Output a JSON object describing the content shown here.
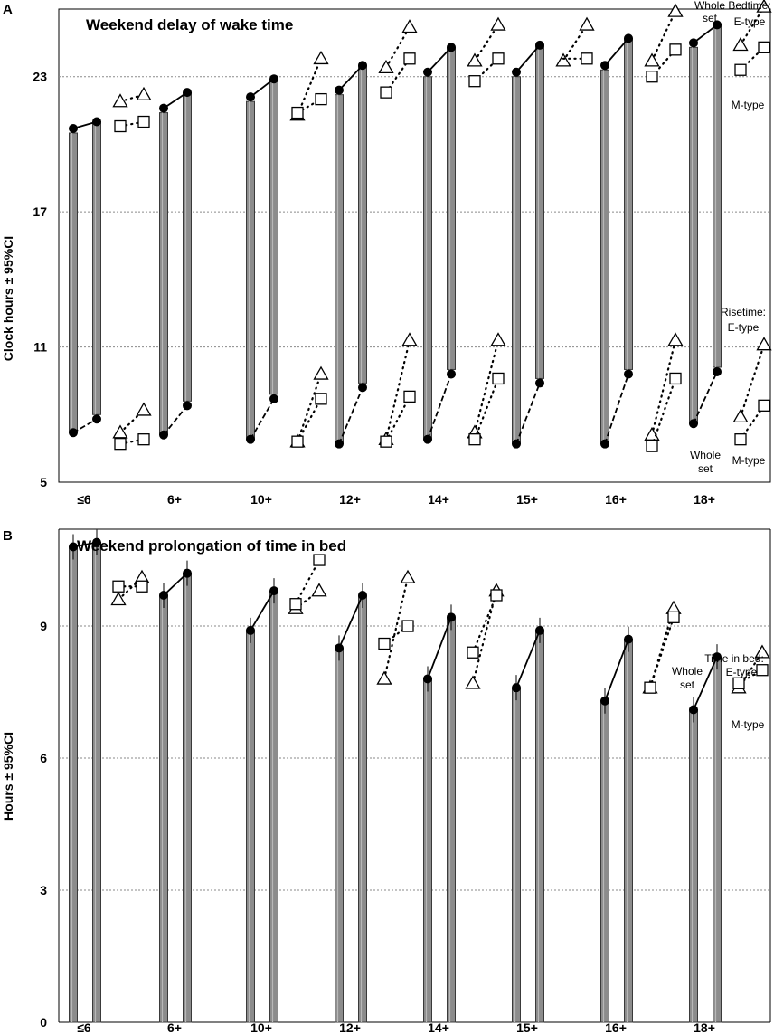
{
  "chart_data": [
    {
      "panel": "A",
      "type": "bar",
      "subtype": "floating-range-bars",
      "title": "Weekend delay of wake time",
      "ylabel": "Clock hours ± 95%CI",
      "ylim": [
        5,
        26
      ],
      "yticks": [
        5,
        11,
        17,
        23
      ],
      "categories": [
        "≤6",
        "6+",
        "10+",
        "12+",
        "14+",
        "15+",
        "16+",
        "18+"
      ],
      "series": [
        {
          "name": "Whole set weekday bedtime",
          "values": [
            20.7,
            21.6,
            22.1,
            22.4,
            23.2,
            23.2,
            23.5,
            24.5
          ]
        },
        {
          "name": "Whole set weekend bedtime",
          "values": [
            21.0,
            22.3,
            22.9,
            23.5,
            24.3,
            24.4,
            24.7,
            25.3
          ]
        },
        {
          "name": "Whole set weekday risetime",
          "values": [
            7.2,
            7.1,
            6.9,
            6.7,
            6.9,
            6.7,
            6.7,
            7.6
          ]
        },
        {
          "name": "Whole set weekend risetime",
          "values": [
            7.8,
            8.4,
            8.7,
            9.2,
            9.8,
            9.4,
            9.8,
            9.9
          ]
        },
        {
          "name": "E-type weekday bedtime",
          "values": [
            21.9,
            null,
            21.3,
            23.4,
            23.7,
            23.7,
            23.7,
            24.4
          ]
        },
        {
          "name": "E-type weekend bedtime",
          "values": [
            22.2,
            null,
            23.8,
            25.2,
            25.3,
            25.3,
            25.9,
            26.1
          ]
        },
        {
          "name": "M-type weekday bedtime",
          "values": [
            20.8,
            null,
            21.4,
            22.3,
            22.8,
            null,
            23.0,
            23.3
          ]
        },
        {
          "name": "M-type weekend bedtime",
          "values": [
            21.0,
            null,
            22.0,
            23.8,
            23.8,
            23.8,
            24.2,
            24.3
          ]
        },
        {
          "name": "E-type weekday risetime",
          "values": [
            7.2,
            null,
            6.8,
            6.9,
            7.2,
            null,
            7.1,
            7.9
          ]
        },
        {
          "name": "E-type weekend risetime",
          "values": [
            8.2,
            null,
            9.8,
            11.3,
            11.3,
            null,
            11.3,
            11.1
          ]
        },
        {
          "name": "M-type weekday risetime",
          "values": [
            6.7,
            null,
            6.8,
            6.8,
            6.9,
            null,
            6.6,
            6.9
          ]
        },
        {
          "name": "M-type weekend risetime",
          "values": [
            6.9,
            null,
            8.7,
            8.8,
            9.6,
            null,
            9.6,
            8.4
          ]
        }
      ],
      "annotations": {
        "whole_set_top": "Whole set",
        "bedtime_label": "Bedtime: E-type",
        "mtype_top": "M-type",
        "risetime_label": "Risetime: E-type",
        "whole_set_bottom": "Whole set",
        "mtype_bottom": "M-type"
      }
    },
    {
      "panel": "B",
      "type": "bar",
      "title": "Weekend prolongation of time in bed",
      "ylabel": "Hours ± 95%CI",
      "ylim": [
        0,
        11.2
      ],
      "yticks": [
        0,
        3,
        6,
        9
      ],
      "categories": [
        "≤6",
        "6+",
        "10+",
        "12+",
        "14+",
        "15+",
        "16+",
        "18+"
      ],
      "series": [
        {
          "name": "Whole set weekday time in bed",
          "values": [
            10.8,
            9.7,
            8.9,
            8.5,
            7.8,
            7.6,
            7.3,
            7.1
          ]
        },
        {
          "name": "Whole set weekend time in bed",
          "values": [
            10.9,
            10.2,
            9.8,
            9.7,
            9.2,
            8.9,
            8.7,
            8.3
          ]
        },
        {
          "name": "E-type weekday time in bed",
          "values": [
            9.6,
            null,
            9.4,
            7.8,
            7.7,
            null,
            7.6,
            7.6
          ]
        },
        {
          "name": "E-type weekend time in bed",
          "values": [
            10.1,
            null,
            9.8,
            10.1,
            9.8,
            null,
            9.4,
            8.4
          ]
        },
        {
          "name": "M-type weekday time in bed",
          "values": [
            9.9,
            null,
            9.5,
            8.6,
            8.4,
            null,
            7.6,
            7.7
          ]
        },
        {
          "name": "M-type weekend time in bed",
          "values": [
            9.9,
            null,
            10.5,
            9.0,
            9.7,
            null,
            9.2,
            8.0
          ]
        }
      ],
      "annotations": {
        "tib_label": "Time in bed: E-type",
        "whole_set": "Whole set",
        "mtype": "M-type"
      }
    }
  ],
  "panel_labels": {
    "a": "A",
    "b": "B"
  }
}
